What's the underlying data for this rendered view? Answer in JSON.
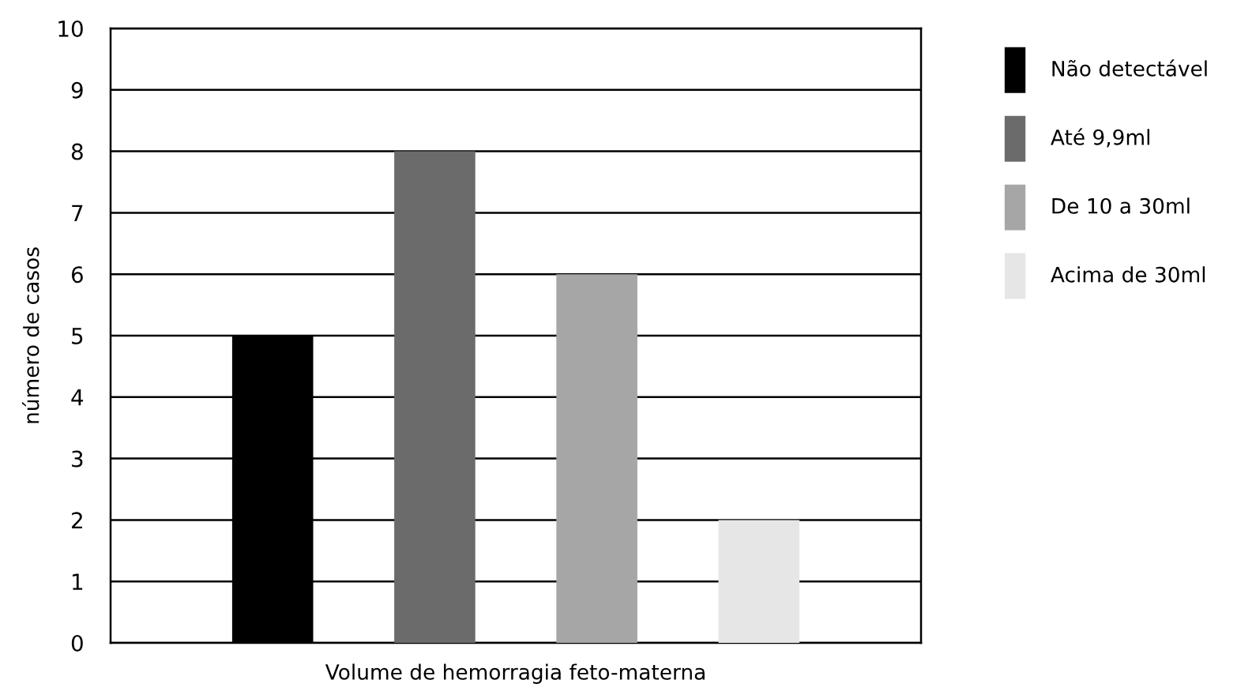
{
  "chart_data": {
    "type": "bar",
    "xlabel": "Volume de hemorragia feto-materna",
    "ylabel": "número de casos",
    "categories": [
      null,
      null,
      null,
      null
    ],
    "series": [
      {
        "name": "Não detectável",
        "color": "#000000",
        "values": [
          5,
          null,
          null,
          null
        ]
      },
      {
        "name": "Até 9,9ml",
        "color": "#6b6b6b",
        "values": [
          null,
          8,
          null,
          null
        ]
      },
      {
        "name": "De 10 a 30ml",
        "color": "#a6a6a6",
        "values": [
          null,
          null,
          6,
          null
        ]
      },
      {
        "name": "Acima de 30ml",
        "color": "#e6e6e6",
        "values": [
          null,
          null,
          null,
          2
        ]
      }
    ],
    "ylim": [
      0,
      10
    ],
    "yticks": [
      0,
      1,
      2,
      3,
      4,
      5,
      6,
      7,
      8,
      9,
      10
    ],
    "grid": "y",
    "legend": "right"
  }
}
